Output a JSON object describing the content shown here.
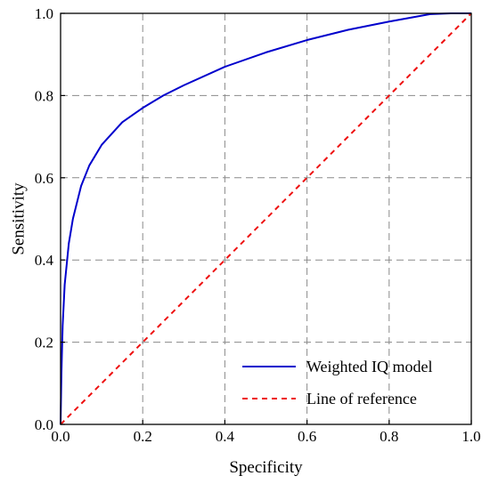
{
  "chart_data": {
    "type": "line",
    "title": "",
    "xlabel": "Specificity",
    "ylabel": "Sensitivity",
    "xlim": [
      0.0,
      1.0
    ],
    "ylim": [
      0.0,
      1.0
    ],
    "grid": true,
    "legend_position": "bottom-right",
    "x_ticks": [
      "0.0",
      "0.2",
      "0.4",
      "0.6",
      "0.8",
      "1.0"
    ],
    "y_ticks": [
      "0.0",
      "0.2",
      "0.4",
      "0.6",
      "0.8",
      "1.0"
    ],
    "series": [
      {
        "name": "Weighted IQ model",
        "color": "#0000cc",
        "style": "solid",
        "x": [
          0,
          0.002,
          0.005,
          0.01,
          0.02,
          0.03,
          0.05,
          0.07,
          0.1,
          0.15,
          0.2,
          0.25,
          0.3,
          0.4,
          0.5,
          0.6,
          0.7,
          0.8,
          0.9,
          0.95,
          1.0
        ],
        "y": [
          0,
          0.12,
          0.24,
          0.34,
          0.44,
          0.5,
          0.58,
          0.63,
          0.68,
          0.735,
          0.77,
          0.8,
          0.825,
          0.87,
          0.905,
          0.935,
          0.96,
          0.98,
          0.998,
          1.0,
          1.0
        ]
      },
      {
        "name": "Line of reference",
        "color": "#ee1111",
        "style": "dashed",
        "x": [
          0,
          1
        ],
        "y": [
          0,
          1
        ]
      }
    ]
  }
}
